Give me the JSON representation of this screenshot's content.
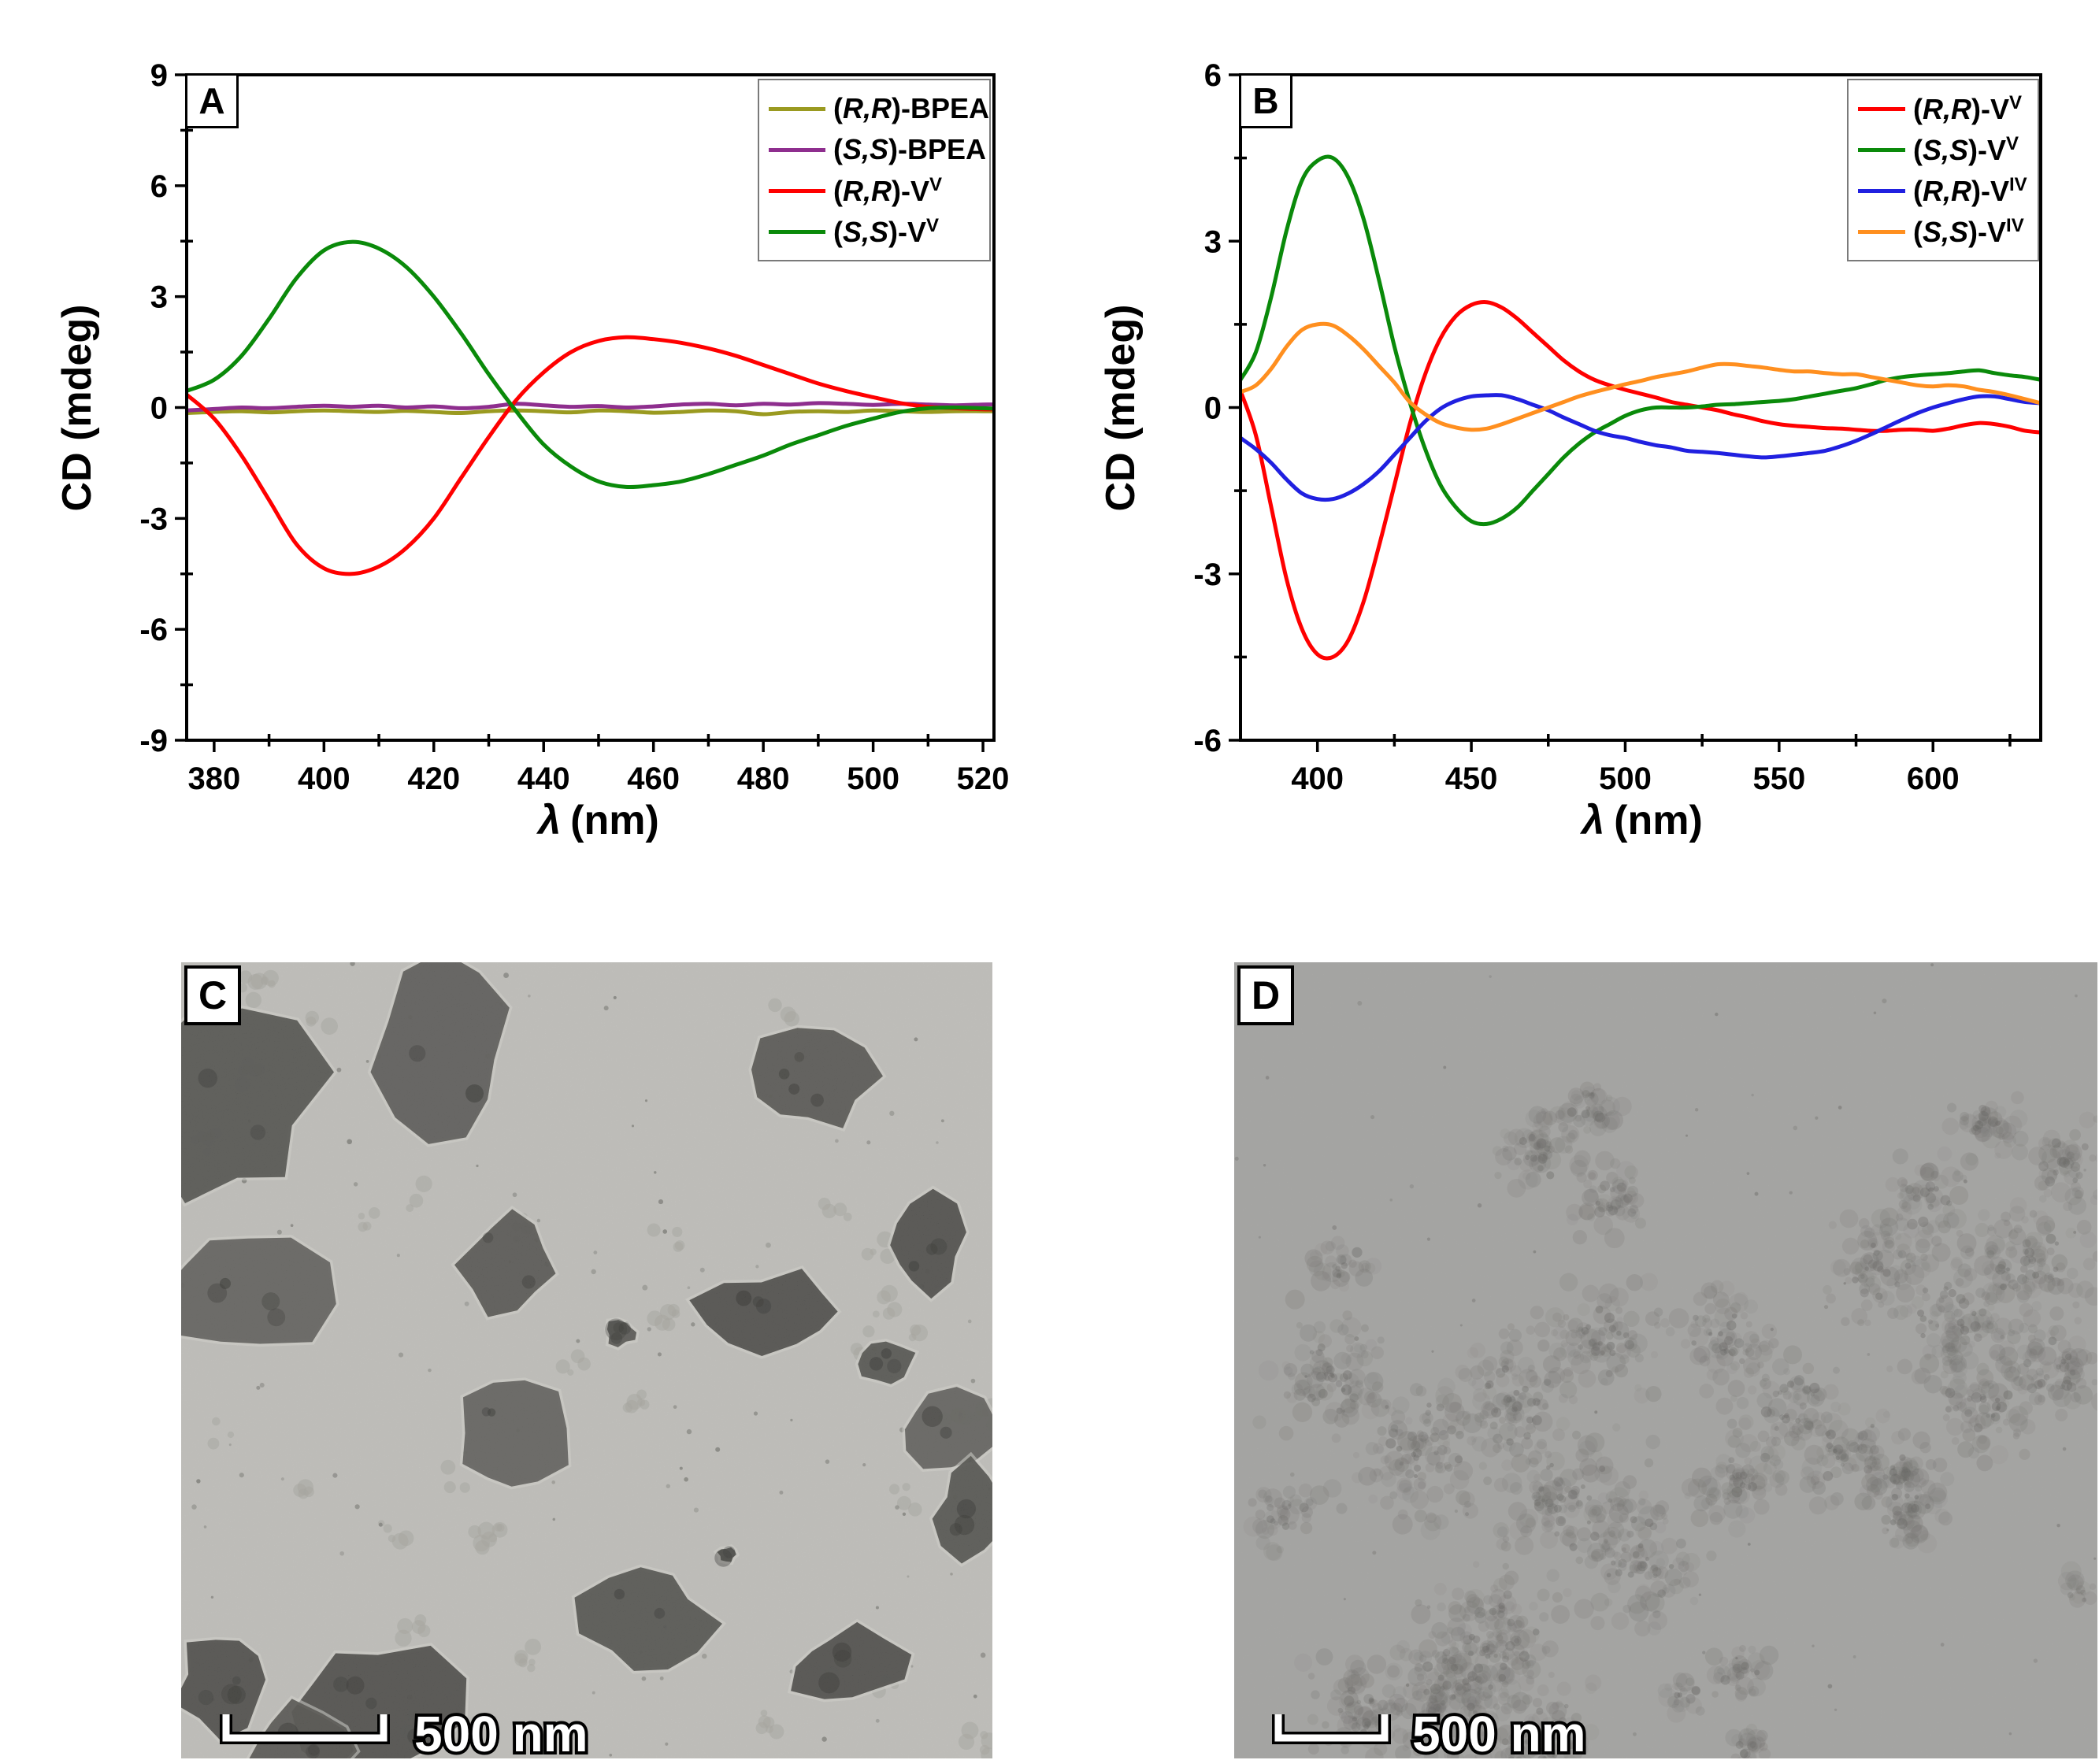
{
  "figure": {
    "panels": [
      "A",
      "B",
      "C",
      "D"
    ]
  },
  "chart_data": [
    {
      "id": "A",
      "panel_label": "A",
      "type": "line",
      "title": "",
      "xlabel": "λ (nm)",
      "xlabel_symbol": "λ",
      "xlabel_rest": "(nm)",
      "ylabel": "CD (mdeg)",
      "xlim": [
        375,
        522
      ],
      "ylim": [
        -9,
        9
      ],
      "xticks": [
        380,
        400,
        420,
        440,
        460,
        480,
        500,
        520
      ],
      "yticks": [
        9,
        6,
        3,
        0,
        -3,
        -6,
        -9
      ],
      "x_minor_step": 10,
      "y_minor_step": 1.5,
      "grid": false,
      "legend_position": "top-right",
      "x": [
        375,
        380,
        385,
        390,
        395,
        400,
        405,
        410,
        415,
        420,
        425,
        430,
        435,
        440,
        445,
        450,
        455,
        460,
        465,
        470,
        475,
        480,
        485,
        490,
        495,
        500,
        505,
        510,
        515,
        520,
        522
      ],
      "series": [
        {
          "key": "rr-bpea",
          "label": "(R,R)-BPEA",
          "stereo": "R,R",
          "base": "BPEA",
          "sup": "",
          "color": "#9A9A20",
          "values": [
            -0.15,
            -0.12,
            -0.1,
            -0.13,
            -0.1,
            -0.08,
            -0.1,
            -0.12,
            -0.09,
            -0.12,
            -0.15,
            -0.1,
            -0.08,
            -0.1,
            -0.13,
            -0.08,
            -0.1,
            -0.14,
            -0.12,
            -0.08,
            -0.1,
            -0.18,
            -0.12,
            -0.1,
            -0.12,
            -0.08,
            -0.1,
            -0.12,
            -0.1,
            -0.1,
            -0.1
          ]
        },
        {
          "key": "ss-bpea",
          "label": "(S,S)-BPEA",
          "stereo": "S,S",
          "base": "BPEA",
          "sup": "",
          "color": "#8E2E8E",
          "values": [
            -0.08,
            -0.04,
            0.0,
            -0.02,
            0.02,
            0.05,
            0.02,
            0.05,
            0.0,
            0.03,
            -0.02,
            0.02,
            0.1,
            0.06,
            0.02,
            0.04,
            0.0,
            0.03,
            0.08,
            0.1,
            0.06,
            0.1,
            0.08,
            0.12,
            0.1,
            0.07,
            0.1,
            0.08,
            0.06,
            0.08,
            0.08
          ]
        },
        {
          "key": "rr-vv",
          "label": "(R,R)-V^V",
          "stereo": "R,R",
          "base": "V",
          "sup": "V",
          "color": "#FF0000",
          "values": [
            0.35,
            -0.3,
            -1.3,
            -2.5,
            -3.7,
            -4.35,
            -4.5,
            -4.3,
            -3.8,
            -3.0,
            -1.9,
            -0.8,
            0.2,
            0.95,
            1.5,
            1.8,
            1.9,
            1.85,
            1.75,
            1.6,
            1.4,
            1.15,
            0.9,
            0.65,
            0.45,
            0.28,
            0.12,
            0.02,
            -0.02,
            -0.05,
            -0.05
          ]
        },
        {
          "key": "ss-vv",
          "label": "(S,S)-V^V",
          "stereo": "S,S",
          "base": "V",
          "sup": "V",
          "color": "#0A8A0A",
          "values": [
            0.45,
            0.75,
            1.4,
            2.4,
            3.5,
            4.25,
            4.48,
            4.3,
            3.8,
            3.0,
            2.0,
            0.9,
            -0.1,
            -1.0,
            -1.6,
            -2.0,
            -2.15,
            -2.1,
            -2.0,
            -1.8,
            -1.55,
            -1.3,
            -1.0,
            -0.75,
            -0.5,
            -0.3,
            -0.12,
            -0.02,
            0.0,
            -0.02,
            -0.03
          ]
        }
      ]
    },
    {
      "id": "B",
      "panel_label": "B",
      "type": "line",
      "title": "",
      "xlabel": "λ (nm)",
      "xlabel_symbol": "λ",
      "xlabel_rest": "(nm)",
      "ylabel": "CD (mdeg)",
      "xlim": [
        375,
        635
      ],
      "ylim": [
        -6,
        6
      ],
      "xticks": [
        400,
        450,
        500,
        550,
        600
      ],
      "yticks": [
        6,
        3,
        0,
        -3,
        -6
      ],
      "x_minor_step": 25,
      "y_minor_step": 1.5,
      "grid": false,
      "legend_position": "top-right",
      "x": [
        375,
        380,
        385,
        390,
        395,
        400,
        405,
        410,
        415,
        420,
        425,
        430,
        435,
        440,
        445,
        450,
        455,
        460,
        465,
        470,
        475,
        480,
        485,
        490,
        495,
        500,
        505,
        510,
        515,
        520,
        525,
        530,
        535,
        540,
        545,
        550,
        555,
        560,
        565,
        570,
        575,
        580,
        585,
        590,
        595,
        600,
        605,
        610,
        615,
        620,
        625,
        630,
        635
      ],
      "series": [
        {
          "key": "rr-vv",
          "label": "(R,R)-V^V",
          "stereo": "R,R",
          "base": "V",
          "sup": "V",
          "color": "#FF0000",
          "values": [
            0.3,
            -0.5,
            -1.8,
            -3.1,
            -4.0,
            -4.45,
            -4.5,
            -4.2,
            -3.5,
            -2.5,
            -1.4,
            -0.3,
            0.6,
            1.25,
            1.65,
            1.85,
            1.9,
            1.8,
            1.6,
            1.35,
            1.1,
            0.85,
            0.65,
            0.5,
            0.4,
            0.32,
            0.25,
            0.18,
            0.1,
            0.05,
            0.0,
            -0.05,
            -0.12,
            -0.18,
            -0.25,
            -0.3,
            -0.33,
            -0.35,
            -0.37,
            -0.38,
            -0.4,
            -0.42,
            -0.42,
            -0.4,
            -0.4,
            -0.42,
            -0.38,
            -0.32,
            -0.28,
            -0.3,
            -0.35,
            -0.42,
            -0.45
          ]
        },
        {
          "key": "ss-vv",
          "label": "(S,S)-V^V",
          "stereo": "S,S",
          "base": "V",
          "sup": "V",
          "color": "#0A8A0A",
          "values": [
            0.5,
            1.0,
            2.0,
            3.2,
            4.1,
            4.45,
            4.5,
            4.15,
            3.4,
            2.3,
            1.1,
            0.1,
            -0.75,
            -1.4,
            -1.8,
            -2.05,
            -2.1,
            -2.0,
            -1.8,
            -1.5,
            -1.2,
            -0.9,
            -0.65,
            -0.45,
            -0.3,
            -0.15,
            -0.05,
            0.0,
            0.0,
            0.0,
            0.02,
            0.05,
            0.06,
            0.08,
            0.1,
            0.12,
            0.15,
            0.2,
            0.25,
            0.3,
            0.35,
            0.42,
            0.5,
            0.55,
            0.58,
            0.6,
            0.62,
            0.65,
            0.67,
            0.62,
            0.58,
            0.55,
            0.5
          ]
        },
        {
          "key": "rr-viv",
          "label": "(R,R)-V^IV",
          "stereo": "R,R",
          "base": "V",
          "sup": "IV",
          "color": "#2020E0",
          "values": [
            -0.55,
            -0.75,
            -1.0,
            -1.3,
            -1.55,
            -1.65,
            -1.65,
            -1.55,
            -1.38,
            -1.15,
            -0.85,
            -0.55,
            -0.25,
            -0.02,
            0.12,
            0.2,
            0.22,
            0.22,
            0.15,
            0.05,
            -0.05,
            -0.18,
            -0.3,
            -0.42,
            -0.5,
            -0.55,
            -0.62,
            -0.68,
            -0.72,
            -0.78,
            -0.8,
            -0.82,
            -0.85,
            -0.88,
            -0.9,
            -0.88,
            -0.85,
            -0.82,
            -0.78,
            -0.7,
            -0.6,
            -0.48,
            -0.35,
            -0.22,
            -0.1,
            0.0,
            0.08,
            0.15,
            0.2,
            0.2,
            0.15,
            0.1,
            0.08
          ]
        },
        {
          "key": "ss-viv",
          "label": "(S,S)-V^IV",
          "stereo": "S,S",
          "base": "V",
          "sup": "IV",
          "color": "#FF8F1F",
          "values": [
            0.28,
            0.4,
            0.7,
            1.1,
            1.4,
            1.5,
            1.48,
            1.3,
            1.05,
            0.75,
            0.45,
            0.1,
            -0.12,
            -0.28,
            -0.36,
            -0.4,
            -0.38,
            -0.3,
            -0.2,
            -0.1,
            0.0,
            0.1,
            0.2,
            0.28,
            0.35,
            0.42,
            0.48,
            0.55,
            0.6,
            0.65,
            0.72,
            0.78,
            0.78,
            0.75,
            0.72,
            0.68,
            0.65,
            0.65,
            0.62,
            0.6,
            0.6,
            0.55,
            0.5,
            0.45,
            0.4,
            0.38,
            0.4,
            0.38,
            0.32,
            0.28,
            0.22,
            0.15,
            0.08
          ]
        }
      ]
    }
  ],
  "tem_panels": [
    {
      "panel_label": "C",
      "scalebar_label": "500 nm",
      "background": "#C9C8C4"
    },
    {
      "panel_label": "D",
      "scalebar_label": "500 nm",
      "background": "#B5B4B2"
    }
  ]
}
